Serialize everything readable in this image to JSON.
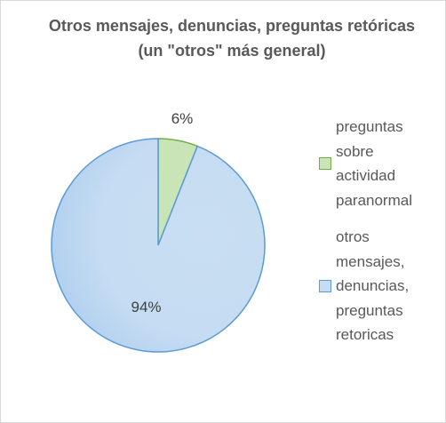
{
  "chart_data": {
    "type": "pie",
    "title": "Otros mensajes, denuncias, preguntas retóricas (un \"otros\" más general)",
    "categories": [
      "preguntas sobre actividad paranormal",
      "otros mensajes, denuncias, preguntas retoricas"
    ],
    "values": [
      6,
      94
    ],
    "value_labels": [
      "6%",
      "94%"
    ],
    "colors": [
      "#c9e5b8",
      "#c5dcf2"
    ],
    "edge_colors": [
      "#70ad47",
      "#5b9bd5"
    ],
    "legend": "right"
  }
}
